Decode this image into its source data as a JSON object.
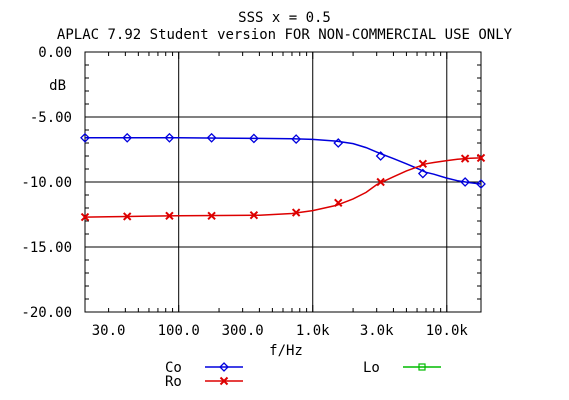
{
  "chart_data": {
    "type": "line",
    "title": "SSS x = 0.5",
    "subtitle": "APLAC 7.92 Student version FOR NON-COMMERCIAL USE ONLY",
    "xlabel": "f/Hz",
    "ylabel": "dB",
    "x_scale": "log",
    "xlim": [
      20,
      18000
    ],
    "ylim": [
      -20,
      0
    ],
    "grid": true,
    "x_ticks": [
      {
        "value": 30,
        "label": "30.0"
      },
      {
        "value": 100,
        "label": "100.0"
      },
      {
        "value": 300,
        "label": "300.0"
      },
      {
        "value": 1000,
        "label": "1.0k"
      },
      {
        "value": 3000,
        "label": "3.0k"
      },
      {
        "value": 10000,
        "label": "10.0k"
      }
    ],
    "y_ticks": [
      {
        "value": 0,
        "label": "0.00"
      },
      {
        "value": -5,
        "label": "-5.00"
      },
      {
        "value": -10,
        "label": "-10.00"
      },
      {
        "value": -15,
        "label": "-15.00"
      },
      {
        "value": -20,
        "label": "-20.00"
      }
    ],
    "legend_placement": "bottom",
    "series": [
      {
        "name": "Co",
        "color": "#0000dd",
        "marker": "diamond",
        "x": [
          20,
          41.3,
          85.3,
          176,
          364,
          752,
          1550,
          3210,
          6630,
          13700,
          18000
        ],
        "y": [
          -6.6,
          -6.6,
          -6.6,
          -6.6,
          -6.65,
          -6.7,
          -7.0,
          -8.0,
          -9.35,
          -10.0,
          -10.15
        ],
        "points": [
          [
            20,
            -6.6
          ],
          [
            30,
            -6.6
          ],
          [
            60,
            -6.6
          ],
          [
            100,
            -6.6
          ],
          [
            200,
            -6.62
          ],
          [
            400,
            -6.65
          ],
          [
            700,
            -6.68
          ],
          [
            1000,
            -6.72
          ],
          [
            1500,
            -6.85
          ],
          [
            2000,
            -7.05
          ],
          [
            2500,
            -7.35
          ],
          [
            3000,
            -7.7
          ],
          [
            4000,
            -8.2
          ],
          [
            5000,
            -8.6
          ],
          [
            6000,
            -8.95
          ],
          [
            7000,
            -9.25
          ],
          [
            8000,
            -9.4
          ],
          [
            10000,
            -9.7
          ],
          [
            12000,
            -9.9
          ],
          [
            15000,
            -10.05
          ],
          [
            18000,
            -10.15
          ]
        ]
      },
      {
        "name": "Ro",
        "color": "#dd0000",
        "marker": "x",
        "x": [
          20,
          41.3,
          85.3,
          176,
          364,
          752,
          1550,
          3210,
          6630,
          13700,
          18000
        ],
        "y": [
          -12.7,
          -12.65,
          -12.6,
          -12.6,
          -12.55,
          -12.35,
          -11.6,
          -10.0,
          -8.6,
          -8.2,
          -8.15
        ],
        "points": [
          [
            20,
            -12.7
          ],
          [
            30,
            -12.68
          ],
          [
            60,
            -12.62
          ],
          [
            100,
            -12.6
          ],
          [
            200,
            -12.58
          ],
          [
            400,
            -12.55
          ],
          [
            700,
            -12.42
          ],
          [
            1000,
            -12.2
          ],
          [
            1500,
            -11.8
          ],
          [
            2000,
            -11.3
          ],
          [
            2500,
            -10.8
          ],
          [
            3000,
            -10.2
          ],
          [
            4000,
            -9.6
          ],
          [
            5000,
            -9.15
          ],
          [
            6000,
            -8.85
          ],
          [
            7000,
            -8.6
          ],
          [
            8000,
            -8.5
          ],
          [
            10000,
            -8.35
          ],
          [
            12000,
            -8.25
          ],
          [
            15000,
            -8.18
          ],
          [
            18000,
            -8.15
          ]
        ]
      },
      {
        "name": "Lo",
        "color": "#00bb00",
        "marker": "square",
        "x": [],
        "y": [],
        "points": []
      }
    ]
  }
}
